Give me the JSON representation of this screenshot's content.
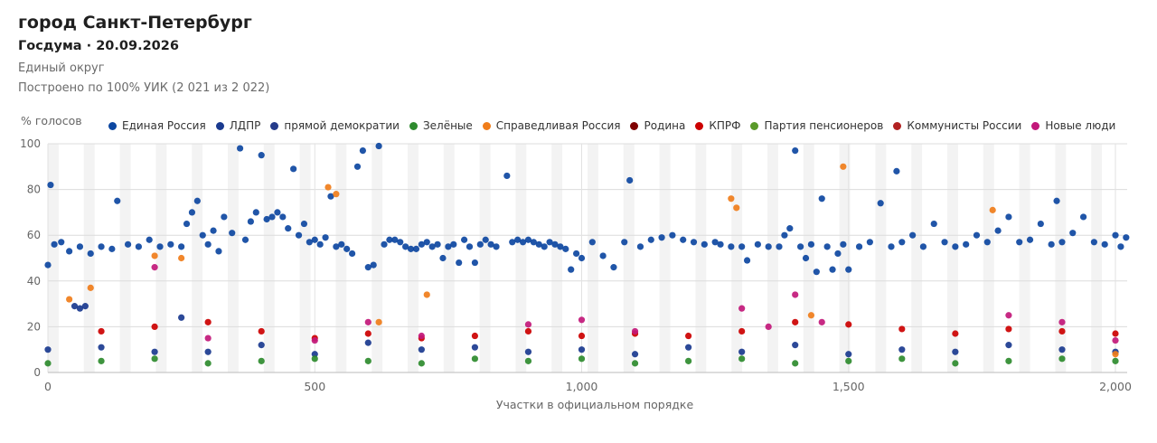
{
  "header": {
    "title": "город Санкт-Петербург",
    "subtitle": "Госдума · 20.09.2026",
    "district": "Единый округ",
    "coverage": "Построено по 100% УИК (2 021 из 2 022)"
  },
  "legend": [
    {
      "label": "Единая Россия",
      "color": "#0d47a1"
    },
    {
      "label": "ЛДПР",
      "color": "#1a3a8f"
    },
    {
      "label": "прямой демократии",
      "color": "#253b8a"
    },
    {
      "label": "Зелёные",
      "color": "#2e8b2e"
    },
    {
      "label": "Справедливая Россия",
      "color": "#f07d1a"
    },
    {
      "label": "Родина",
      "color": "#7f0000"
    },
    {
      "label": "КПРФ",
      "color": "#cc0000"
    },
    {
      "label": "Партия пенсионеров",
      "color": "#5a9a2a"
    },
    {
      "label": "Коммунисты России",
      "color": "#b22222"
    },
    {
      "label": "Новые люди",
      "color": "#c2187a"
    }
  ],
  "chart_data": {
    "type": "scatter",
    "title": "",
    "xlabel": "Участки в официальном порядке",
    "ylabel": "% голосов",
    "xlim": [
      0,
      2022
    ],
    "ylim": [
      0,
      100
    ],
    "x_ticks": [
      0,
      500,
      1000,
      1500,
      2000
    ],
    "x_tick_labels": [
      "0",
      "500",
      "1,000",
      "1,500",
      "2,000"
    ],
    "y_ticks": [
      0,
      20,
      40,
      60,
      80,
      100
    ],
    "y_tick_labels": [
      "0",
      "20",
      "40",
      "60",
      "80",
      "100"
    ],
    "grid": true,
    "legend_position": "top",
    "series": [
      {
        "name": "Единая Россия",
        "color": "#0d47a1",
        "points": [
          [
            0,
            47
          ],
          [
            5,
            82
          ],
          [
            12,
            56
          ],
          [
            25,
            57
          ],
          [
            40,
            53
          ],
          [
            60,
            55
          ],
          [
            80,
            52
          ],
          [
            100,
            55
          ],
          [
            120,
            54
          ],
          [
            130,
            75
          ],
          [
            150,
            56
          ],
          [
            170,
            55
          ],
          [
            190,
            58
          ],
          [
            210,
            55
          ],
          [
            230,
            56
          ],
          [
            250,
            55
          ],
          [
            260,
            65
          ],
          [
            270,
            70
          ],
          [
            280,
            75
          ],
          [
            290,
            60
          ],
          [
            300,
            56
          ],
          [
            310,
            62
          ],
          [
            320,
            53
          ],
          [
            330,
            68
          ],
          [
            345,
            61
          ],
          [
            360,
            98
          ],
          [
            370,
            58
          ],
          [
            380,
            66
          ],
          [
            390,
            70
          ],
          [
            400,
            95
          ],
          [
            410,
            67
          ],
          [
            420,
            68
          ],
          [
            430,
            70
          ],
          [
            440,
            68
          ],
          [
            450,
            63
          ],
          [
            460,
            89
          ],
          [
            470,
            60
          ],
          [
            480,
            65
          ],
          [
            490,
            57
          ],
          [
            500,
            58
          ],
          [
            510,
            56
          ],
          [
            520,
            59
          ],
          [
            530,
            77
          ],
          [
            540,
            55
          ],
          [
            550,
            56
          ],
          [
            560,
            54
          ],
          [
            570,
            52
          ],
          [
            580,
            90
          ],
          [
            590,
            97
          ],
          [
            600,
            46
          ],
          [
            610,
            47
          ],
          [
            620,
            99
          ],
          [
            630,
            56
          ],
          [
            640,
            58
          ],
          [
            650,
            58
          ],
          [
            660,
            57
          ],
          [
            670,
            55
          ],
          [
            680,
            54
          ],
          [
            690,
            54
          ],
          [
            700,
            56
          ],
          [
            710,
            57
          ],
          [
            720,
            55
          ],
          [
            730,
            56
          ],
          [
            740,
            50
          ],
          [
            750,
            55
          ],
          [
            760,
            56
          ],
          [
            770,
            48
          ],
          [
            780,
            58
          ],
          [
            790,
            55
          ],
          [
            800,
            48
          ],
          [
            810,
            56
          ],
          [
            820,
            58
          ],
          [
            830,
            56
          ],
          [
            840,
            55
          ],
          [
            860,
            86
          ],
          [
            870,
            57
          ],
          [
            880,
            58
          ],
          [
            890,
            57
          ],
          [
            900,
            58
          ],
          [
            910,
            57
          ],
          [
            920,
            56
          ],
          [
            930,
            55
          ],
          [
            940,
            57
          ],
          [
            950,
            56
          ],
          [
            960,
            55
          ],
          [
            970,
            54
          ],
          [
            980,
            45
          ],
          [
            990,
            52
          ],
          [
            1000,
            50
          ],
          [
            1020,
            57
          ],
          [
            1040,
            51
          ],
          [
            1060,
            46
          ],
          [
            1080,
            57
          ],
          [
            1090,
            84
          ],
          [
            1110,
            55
          ],
          [
            1130,
            58
          ],
          [
            1150,
            59
          ],
          [
            1170,
            60
          ],
          [
            1190,
            58
          ],
          [
            1210,
            57
          ],
          [
            1230,
            56
          ],
          [
            1250,
            57
          ],
          [
            1260,
            56
          ],
          [
            1280,
            55
          ],
          [
            1300,
            55
          ],
          [
            1310,
            49
          ],
          [
            1330,
            56
          ],
          [
            1350,
            55
          ],
          [
            1370,
            55
          ],
          [
            1380,
            60
          ],
          [
            1390,
            63
          ],
          [
            1400,
            97
          ],
          [
            1410,
            55
          ],
          [
            1420,
            50
          ],
          [
            1430,
            56
          ],
          [
            1440,
            44
          ],
          [
            1450,
            76
          ],
          [
            1460,
            55
          ],
          [
            1470,
            45
          ],
          [
            1480,
            52
          ],
          [
            1490,
            56
          ],
          [
            1500,
            45
          ],
          [
            1520,
            55
          ],
          [
            1540,
            57
          ],
          [
            1560,
            74
          ],
          [
            1580,
            55
          ],
          [
            1590,
            88
          ],
          [
            1600,
            57
          ],
          [
            1620,
            60
          ],
          [
            1640,
            55
          ],
          [
            1660,
            65
          ],
          [
            1680,
            57
          ],
          [
            1700,
            55
          ],
          [
            1720,
            56
          ],
          [
            1740,
            60
          ],
          [
            1760,
            57
          ],
          [
            1780,
            62
          ],
          [
            1800,
            68
          ],
          [
            1820,
            57
          ],
          [
            1840,
            58
          ],
          [
            1860,
            65
          ],
          [
            1880,
            56
          ],
          [
            1890,
            75
          ],
          [
            1900,
            57
          ],
          [
            1920,
            61
          ],
          [
            1940,
            68
          ],
          [
            1960,
            57
          ],
          [
            1980,
            56
          ],
          [
            2000,
            60
          ],
          [
            2010,
            55
          ],
          [
            2020,
            59
          ]
        ]
      },
      {
        "name": "ЛДПР",
        "color": "#1a3a8f",
        "points": [
          [
            0,
            10
          ],
          [
            50,
            29
          ],
          [
            60,
            28
          ],
          [
            70,
            29
          ],
          [
            100,
            11
          ],
          [
            200,
            9
          ],
          [
            250,
            24
          ],
          [
            300,
            9
          ],
          [
            400,
            12
          ],
          [
            500,
            8
          ],
          [
            600,
            13
          ],
          [
            700,
            10
          ],
          [
            800,
            11
          ],
          [
            900,
            9
          ],
          [
            1000,
            10
          ],
          [
            1100,
            8
          ],
          [
            1200,
            11
          ],
          [
            1300,
            9
          ],
          [
            1400,
            12
          ],
          [
            1500,
            8
          ],
          [
            1600,
            10
          ],
          [
            1700,
            9
          ],
          [
            1800,
            12
          ],
          [
            1900,
            10
          ],
          [
            2000,
            9
          ]
        ]
      },
      {
        "name": "Зелёные",
        "color": "#2e8b2e",
        "points": [
          [
            0,
            4
          ],
          [
            100,
            5
          ],
          [
            200,
            6
          ],
          [
            300,
            4
          ],
          [
            400,
            5
          ],
          [
            500,
            6
          ],
          [
            600,
            5
          ],
          [
            700,
            4
          ],
          [
            800,
            6
          ],
          [
            900,
            5
          ],
          [
            1000,
            6
          ],
          [
            1100,
            4
          ],
          [
            1200,
            5
          ],
          [
            1300,
            6
          ],
          [
            1400,
            4
          ],
          [
            1500,
            5
          ],
          [
            1600,
            6
          ],
          [
            1700,
            4
          ],
          [
            1800,
            5
          ],
          [
            1900,
            6
          ],
          [
            2000,
            5
          ]
        ]
      },
      {
        "name": "Справедливая Россия",
        "color": "#f07d1a",
        "points": [
          [
            40,
            32
          ],
          [
            80,
            37
          ],
          [
            200,
            51
          ],
          [
            250,
            50
          ],
          [
            525,
            81
          ],
          [
            540,
            78
          ],
          [
            620,
            22
          ],
          [
            710,
            34
          ],
          [
            1280,
            76
          ],
          [
            1290,
            72
          ],
          [
            1430,
            25
          ],
          [
            1490,
            90
          ],
          [
            1770,
            71
          ],
          [
            2000,
            8
          ]
        ]
      },
      {
        "name": "КПРФ",
        "color": "#cc0000",
        "points": [
          [
            100,
            18
          ],
          [
            200,
            20
          ],
          [
            300,
            22
          ],
          [
            400,
            18
          ],
          [
            500,
            15
          ],
          [
            600,
            17
          ],
          [
            700,
            15
          ],
          [
            800,
            16
          ],
          [
            900,
            18
          ],
          [
            1000,
            16
          ],
          [
            1100,
            17
          ],
          [
            1200,
            16
          ],
          [
            1300,
            18
          ],
          [
            1400,
            22
          ],
          [
            1500,
            21
          ],
          [
            1600,
            19
          ],
          [
            1700,
            17
          ],
          [
            1800,
            19
          ],
          [
            1900,
            18
          ],
          [
            2000,
            17
          ]
        ]
      },
      {
        "name": "Новые люди",
        "color": "#c2187a",
        "points": [
          [
            200,
            46
          ],
          [
            300,
            15
          ],
          [
            500,
            14
          ],
          [
            600,
            22
          ],
          [
            700,
            16
          ],
          [
            900,
            21
          ],
          [
            1000,
            23
          ],
          [
            1100,
            18
          ],
          [
            1300,
            28
          ],
          [
            1350,
            20
          ],
          [
            1400,
            34
          ],
          [
            1450,
            22
          ],
          [
            1800,
            25
          ],
          [
            1900,
            22
          ],
          [
            2000,
            14
          ]
        ]
      }
    ]
  }
}
